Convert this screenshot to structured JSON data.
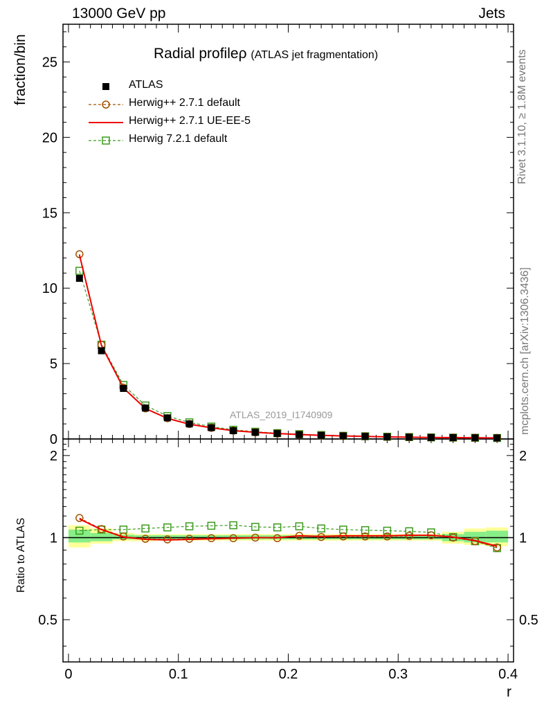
{
  "header": {
    "left": "13000 GeV pp",
    "right": "Jets"
  },
  "side_labels": {
    "rivet": "Rivet 3.1.10, ≥ 1.8M events",
    "mcplots": "mcplots.cern.ch [arXiv:1306.3436]"
  },
  "chart_data": [
    {
      "type": "line",
      "title": "Radial profile",
      "title_symbol": "ρ",
      "subtitle": "(ATLAS jet fragmentation)",
      "ylabel": "fraction/bin",
      "xlabel": "",
      "watermark": "ATLAS_2019_I1740909",
      "xlim": [
        -0.005,
        0.405
      ],
      "ylim": [
        0,
        27.5
      ],
      "yticks": [
        "0",
        "5",
        "10",
        "15",
        "20",
        "25"
      ],
      "x": [
        0.01,
        0.03,
        0.05,
        0.07,
        0.09,
        0.11,
        0.13,
        0.15,
        0.17,
        0.19,
        0.21,
        0.23,
        0.25,
        0.27,
        0.29,
        0.31,
        0.33,
        0.35,
        0.37,
        0.39
      ],
      "series": [
        {
          "name": "ATLAS",
          "color": "#000000",
          "marker": "square-filled",
          "values": [
            10.65,
            5.85,
            3.35,
            2.05,
            1.4,
            1.0,
            0.75,
            0.55,
            0.44,
            0.36,
            0.29,
            0.24,
            0.2,
            0.17,
            0.14,
            0.12,
            0.1,
            0.09,
            0.08,
            0.07
          ]
        },
        {
          "name": "Herwig++ 2.7.1 default",
          "color": "#a05000",
          "marker": "circle-open",
          "dash": "dashed",
          "values": [
            12.25,
            6.25,
            3.4,
            2.03,
            1.38,
            0.99,
            0.74,
            0.55,
            0.44,
            0.36,
            0.295,
            0.24,
            0.2,
            0.17,
            0.14,
            0.12,
            0.1,
            0.09,
            0.08,
            0.066
          ]
        },
        {
          "name": "Herwig++ 2.7.1 UE-EE-5",
          "color": "#ee0000",
          "marker": "none",
          "dash": "solid",
          "values": [
            12.2,
            6.2,
            3.38,
            2.02,
            1.37,
            0.98,
            0.74,
            0.55,
            0.44,
            0.36,
            0.295,
            0.24,
            0.2,
            0.17,
            0.14,
            0.12,
            0.1,
            0.09,
            0.078,
            0.066
          ]
        },
        {
          "name": "Herwig 7.2.1 default",
          "color": "#3a9a1a",
          "marker": "square-open",
          "dash": "dashed",
          "values": [
            11.15,
            6.25,
            3.58,
            2.22,
            1.52,
            1.1,
            0.82,
            0.61,
            0.48,
            0.39,
            0.32,
            0.26,
            0.21,
            0.18,
            0.15,
            0.126,
            0.103,
            0.09,
            0.078,
            0.065
          ]
        }
      ]
    },
    {
      "type": "line",
      "title": "",
      "ylabel": "Ratio to ATLAS",
      "xlabel": "r",
      "xlim": [
        -0.005,
        0.405
      ],
      "ylim": [
        0.35,
        2.3
      ],
      "yticks": [
        "0.5",
        "1",
        "2"
      ],
      "xticks": [
        "0",
        "0.1",
        "0.2",
        "0.3",
        "0.4"
      ],
      "x": [
        0.01,
        0.03,
        0.05,
        0.07,
        0.09,
        0.11,
        0.13,
        0.15,
        0.17,
        0.19,
        0.21,
        0.23,
        0.25,
        0.27,
        0.29,
        0.31,
        0.33,
        0.35,
        0.37,
        0.39
      ],
      "band_yellow": [
        [
          0.92,
          1.11
        ],
        [
          0.95,
          1.08
        ],
        [
          0.97,
          1.04
        ],
        [
          0.97,
          1.03
        ],
        [
          0.975,
          1.03
        ],
        [
          0.975,
          1.03
        ],
        [
          0.975,
          1.03
        ],
        [
          0.975,
          1.03
        ],
        [
          0.975,
          1.03
        ],
        [
          0.975,
          1.03
        ],
        [
          0.975,
          1.03
        ],
        [
          0.975,
          1.03
        ],
        [
          0.975,
          1.03
        ],
        [
          0.975,
          1.03
        ],
        [
          0.975,
          1.03
        ],
        [
          0.975,
          1.03
        ],
        [
          0.975,
          1.03
        ],
        [
          0.95,
          1.05
        ],
        [
          0.94,
          1.08
        ],
        [
          0.93,
          1.09
        ]
      ],
      "band_green": [
        [
          0.96,
          1.07
        ],
        [
          0.97,
          1.04
        ],
        [
          0.985,
          1.025
        ],
        [
          0.985,
          1.02
        ],
        [
          0.985,
          1.02
        ],
        [
          0.985,
          1.02
        ],
        [
          0.985,
          1.02
        ],
        [
          0.985,
          1.02
        ],
        [
          0.985,
          1.02
        ],
        [
          0.985,
          1.02
        ],
        [
          0.985,
          1.02
        ],
        [
          0.985,
          1.02
        ],
        [
          0.985,
          1.02
        ],
        [
          0.985,
          1.02
        ],
        [
          0.985,
          1.02
        ],
        [
          0.985,
          1.02
        ],
        [
          0.985,
          1.02
        ],
        [
          0.97,
          1.03
        ],
        [
          0.96,
          1.05
        ],
        [
          0.96,
          1.06
        ]
      ],
      "series": [
        {
          "name": "Herwig++ 2.7.1 default",
          "color": "#a05000",
          "marker": "circle-open",
          "dash": "dashed",
          "values": [
            1.18,
            1.075,
            1.01,
            0.99,
            0.985,
            0.99,
            0.995,
            0.995,
            1.0,
            0.995,
            1.015,
            1.005,
            1.01,
            1.01,
            1.01,
            1.015,
            1.02,
            1.0,
            0.97,
            0.92
          ]
        },
        {
          "name": "Herwig++ 2.7.1 UE-EE-5",
          "color": "#ee0000",
          "marker": "none",
          "dash": "solid",
          "values": [
            1.17,
            1.07,
            1.005,
            0.985,
            0.98,
            0.985,
            0.99,
            0.995,
            1.0,
            1.0,
            1.015,
            1.01,
            1.015,
            1.015,
            1.015,
            1.02,
            1.02,
            1.005,
            0.975,
            0.93
          ]
        },
        {
          "name": "Herwig 7.2.1 default",
          "color": "#3a9a1a",
          "marker": "square-open",
          "dash": "dashed",
          "values": [
            1.06,
            1.07,
            1.07,
            1.08,
            1.09,
            1.1,
            1.105,
            1.11,
            1.095,
            1.09,
            1.1,
            1.08,
            1.07,
            1.065,
            1.06,
            1.055,
            1.045,
            1.005,
            0.97,
            0.915
          ]
        }
      ]
    }
  ]
}
